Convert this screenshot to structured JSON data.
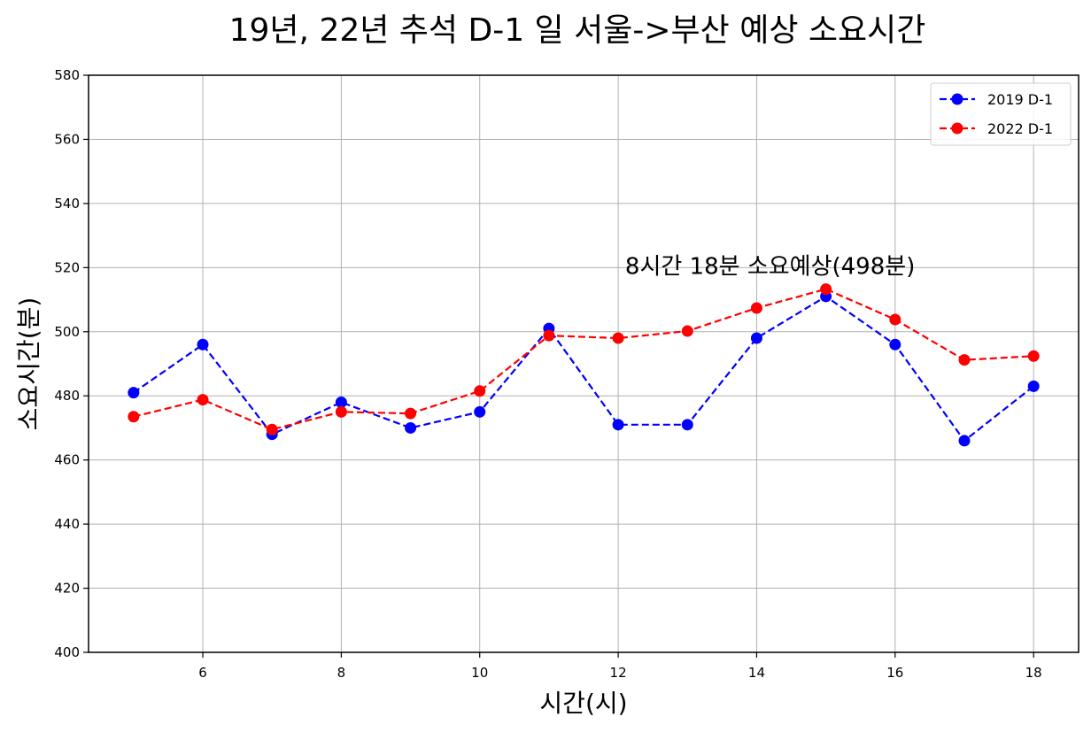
{
  "chart_data": {
    "type": "line",
    "title": "19년, 22년 추석 D-1 일 서울->부산 예상 소요시간",
    "xlabel": "시간(시)",
    "ylabel": "소요시간(분)",
    "xlim": [
      4.35,
      18.65
    ],
    "ylim": [
      400,
      580
    ],
    "xticks": [
      6,
      8,
      10,
      12,
      14,
      16,
      18
    ],
    "yticks": [
      400,
      420,
      440,
      460,
      480,
      500,
      520,
      540,
      560,
      580
    ],
    "grid": true,
    "legend_position": "top-right",
    "x": [
      5,
      6,
      7,
      8,
      9,
      10,
      11,
      12,
      13,
      14,
      15,
      16,
      17,
      18
    ],
    "series": [
      {
        "name": "2019 D-1",
        "color": "#0000ff",
        "line_style": "dashed",
        "marker": "circle",
        "values": [
          481,
          496,
          468,
          478,
          470,
          475,
          501,
          471,
          471,
          498,
          511,
          496,
          466,
          483
        ]
      },
      {
        "name": "2022 D-1",
        "color": "#ff0000",
        "line_style": "dashed",
        "marker": "circle",
        "values": [
          473.5,
          478.8,
          469.5,
          475,
          474.5,
          481.5,
          498.8,
          498,
          500.2,
          507.4,
          513.3,
          503.8,
          491.2,
          492.4
        ]
      }
    ],
    "annotations": [
      {
        "text": "8시간 18분 소요예상(498분)",
        "x": 12.1,
        "y": 518
      }
    ]
  }
}
